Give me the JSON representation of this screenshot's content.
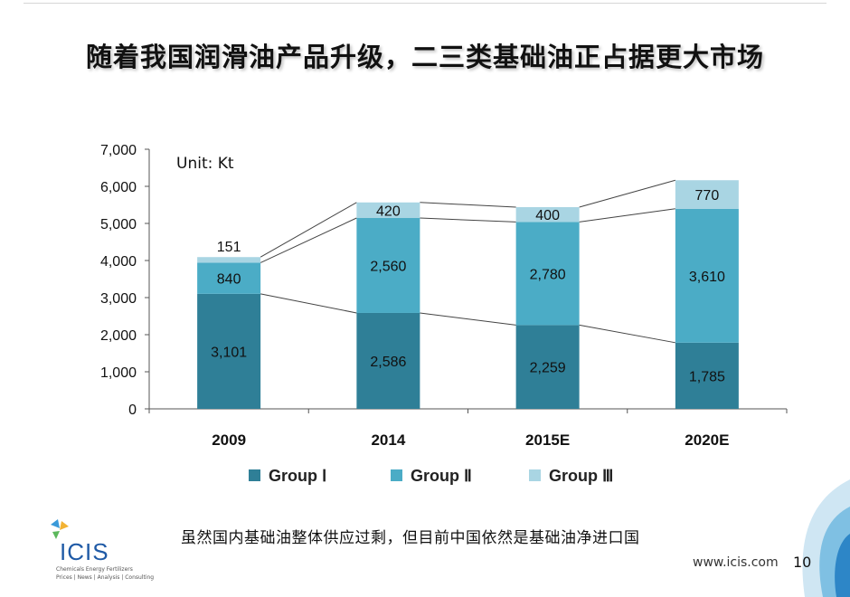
{
  "slide": {
    "title": "随着我国润滑油产品升级，二三类基础油正占据更大市场",
    "note": "虽然国内基础油整体供应过剩，但目前中国依然是基础油净进口国",
    "logo_text": "ICIS",
    "logo_tagline_1": "Chemicals  Energy  Fertilizers",
    "logo_tagline_2": "Prices | News | Analysis | Consulting",
    "website": "www.icis.com",
    "page_number": "10"
  },
  "chart_data": {
    "type": "bar",
    "stacked": true,
    "unit_label": "Unit: Kt",
    "categories": [
      "2009",
      "2014",
      "2015E",
      "2020E"
    ],
    "series": [
      {
        "name": "Group Ⅰ",
        "values": [
          3101,
          2586,
          2259,
          1785
        ],
        "labels": [
          "3,101",
          "2,586",
          "2,259",
          "1,785"
        ],
        "color": "#2f7f97"
      },
      {
        "name": "Group Ⅱ",
        "values": [
          840,
          2560,
          2780,
          3610
        ],
        "labels": [
          "840",
          "2,560",
          "2,780",
          "3,610"
        ],
        "color": "#4bacc6"
      },
      {
        "name": "Group Ⅲ",
        "values": [
          151,
          420,
          400,
          770
        ],
        "labels": [
          "151",
          "420",
          "400",
          "770"
        ],
        "color": "#a9d5e3"
      }
    ],
    "ylim": [
      0,
      7000
    ],
    "yticks": [
      0,
      1000,
      2000,
      3000,
      4000,
      5000,
      6000,
      7000
    ],
    "ytick_labels": [
      "0",
      "1,000",
      "2,000",
      "3,000",
      "4,000",
      "5,000",
      "6,000",
      "7,000"
    ],
    "legend_position": "bottom",
    "grid": false,
    "connector_lines": true
  }
}
